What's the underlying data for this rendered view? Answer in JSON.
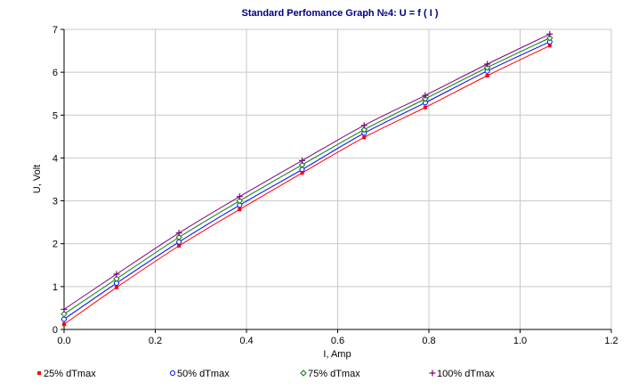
{
  "chart_data": {
    "type": "line",
    "title": "Standard Perfomance Graph №4: U = f ( I )",
    "xlabel": "I, Amp",
    "ylabel": "U, Volt",
    "xlim": [
      0,
      1.2
    ],
    "ylim": [
      0,
      7
    ],
    "xticks": [
      "0.0",
      "0.2",
      "0.4",
      "0.6",
      "0.8",
      "1.0",
      "1.2"
    ],
    "yticks": [
      "0",
      "1",
      "2",
      "3",
      "4",
      "5",
      "6",
      "7"
    ],
    "grid": true,
    "legend_position": "bottom",
    "x": [
      0.0,
      0.115,
      0.252,
      0.385,
      0.522,
      0.658,
      0.792,
      0.928,
      1.065
    ],
    "series": [
      {
        "name": "25% dTmax",
        "color": "#ff0000",
        "marker": "square",
        "values": [
          0.12,
          0.98,
          1.95,
          2.8,
          3.65,
          4.48,
          5.18,
          5.92,
          6.62
        ]
      },
      {
        "name": "50% dTmax",
        "color": "#0000ff",
        "marker": "circle",
        "values": [
          0.24,
          1.08,
          2.04,
          2.9,
          3.73,
          4.58,
          5.29,
          6.03,
          6.71
        ]
      },
      {
        "name": "75% dTmax",
        "color": "#008000",
        "marker": "diamond",
        "values": [
          0.36,
          1.18,
          2.15,
          3.0,
          3.84,
          4.66,
          5.38,
          6.11,
          6.8
        ]
      },
      {
        "name": "100% dTmax",
        "color": "#800080",
        "marker": "plus",
        "values": [
          0.47,
          1.29,
          2.25,
          3.1,
          3.94,
          4.76,
          5.46,
          6.19,
          6.89
        ]
      }
    ]
  }
}
